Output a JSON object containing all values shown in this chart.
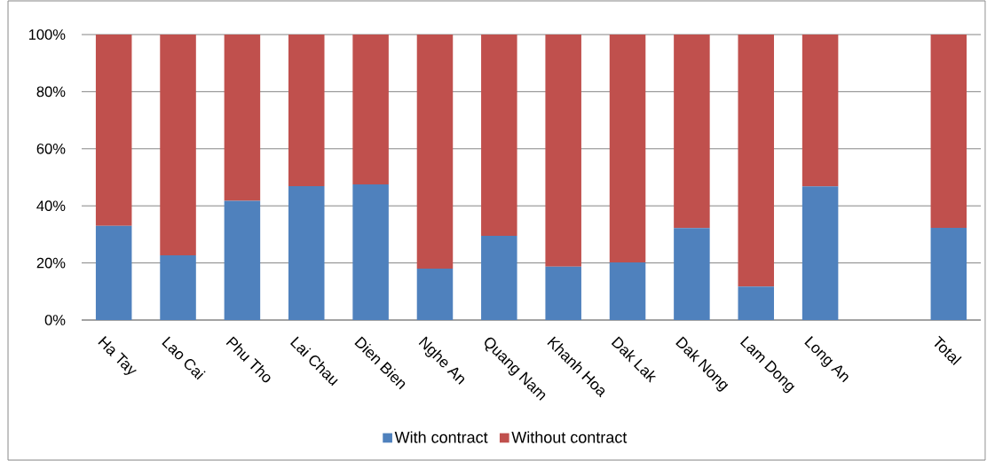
{
  "chart_data": {
    "type": "bar",
    "stacked": true,
    "categories": [
      "Ha Tay",
      "Lao Cai",
      "Phu Tho",
      "Lai Chau",
      "Dien Bien",
      "Nghe An",
      "Quang Nam",
      "Khanh Hoa",
      "Dak Lak",
      "Dak Nong",
      "Lam Dong",
      "Long An",
      null,
      "Total"
    ],
    "series": [
      {
        "name": "With contract",
        "color": "#4f81bd",
        "values": [
          33,
          22.7,
          41.8,
          46.9,
          47.5,
          18,
          29.5,
          18.7,
          20.2,
          32.2,
          11.7,
          46.8,
          null,
          32.3
        ]
      },
      {
        "name": "Without contract",
        "color": "#c0504d",
        "values": [
          67,
          77.3,
          58.2,
          53.1,
          52.5,
          82,
          70.5,
          81.3,
          79.8,
          67.8,
          88.3,
          53.2,
          null,
          67.7
        ]
      }
    ],
    "ylim": [
      0,
      100
    ],
    "yticks": [
      {
        "value": 0,
        "label": "0%"
      },
      {
        "value": 20,
        "label": "20%"
      },
      {
        "value": 40,
        "label": "40%"
      },
      {
        "value": 60,
        "label": "60%"
      },
      {
        "value": 80,
        "label": "80%"
      },
      {
        "value": 100,
        "label": "100%"
      }
    ],
    "grid": "y",
    "legend": "bottom"
  }
}
